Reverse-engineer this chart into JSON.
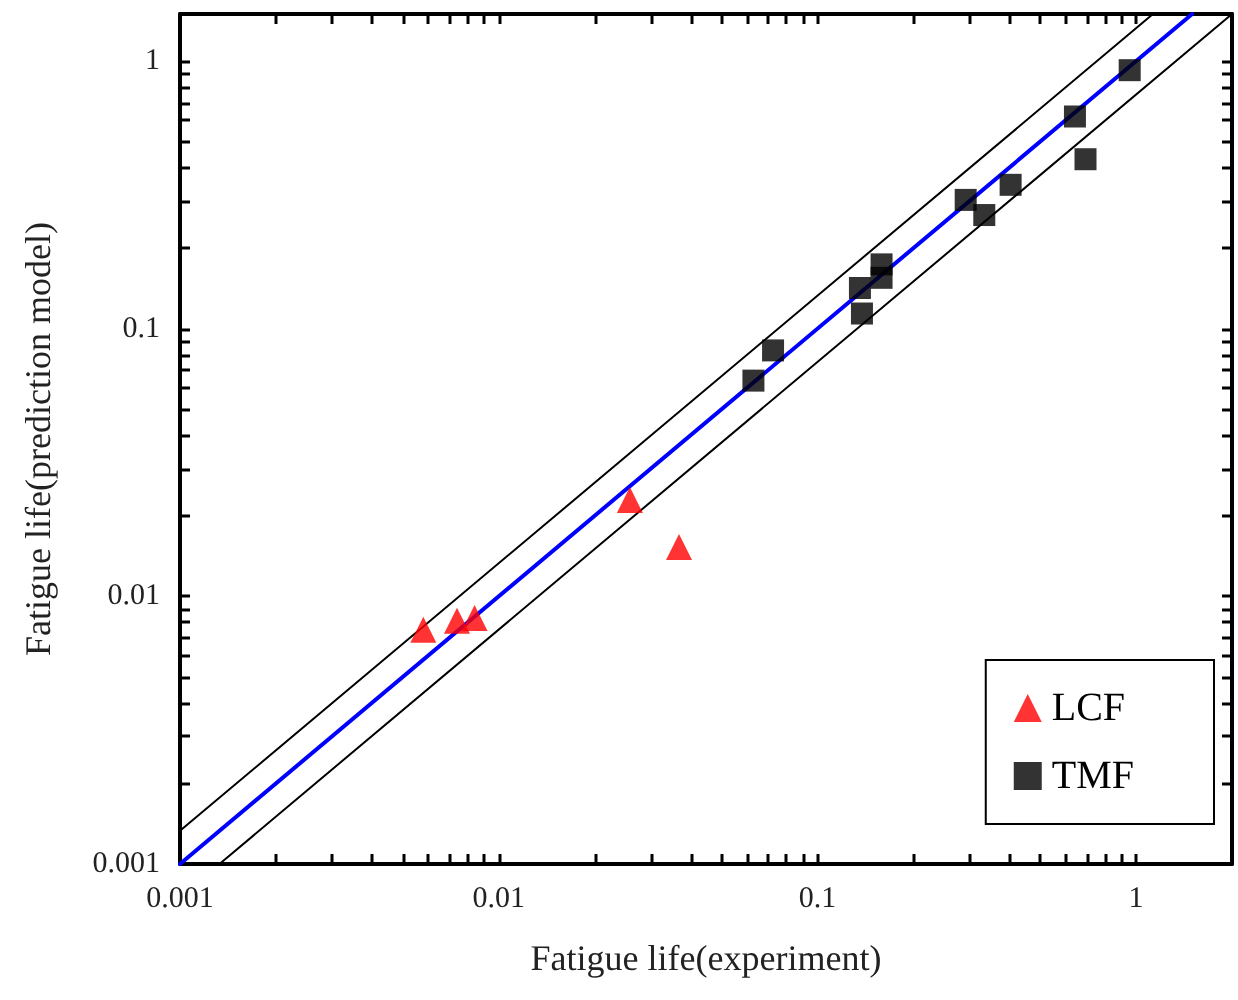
{
  "chart_data": {
    "type": "scatter",
    "xlabel": "Fatigue life(experiment)",
    "ylabel": "Fatigue life(prediction model)",
    "log": "xy",
    "grid": false,
    "legend": "bottom right",
    "xlim": [
      0.001,
      2
    ],
    "ylim": [
      0.001,
      1.5
    ],
    "xticks": [
      0.001,
      {
        "value": 0.002,
        "label": null
      },
      {
        "value": 0.003,
        "label": null
      },
      {
        "value": 0.004,
        "label": null
      },
      {
        "value": 0.005,
        "label": null
      },
      {
        "value": 0.006,
        "label": null
      },
      {
        "value": 0.007,
        "label": null
      },
      {
        "value": 0.008,
        "label": null
      },
      {
        "value": 0.009,
        "label": null
      },
      0.01,
      {
        "value": 0.02,
        "label": null
      },
      {
        "value": 0.03,
        "label": null
      },
      {
        "value": 0.04,
        "label": null
      },
      {
        "value": 0.05,
        "label": null
      },
      {
        "value": 0.06,
        "label": null
      },
      {
        "value": 0.07,
        "label": null
      },
      {
        "value": 0.08,
        "label": null
      },
      {
        "value": 0.09,
        "label": null
      },
      0.1,
      {
        "value": 0.2,
        "label": null
      },
      {
        "value": 0.3,
        "label": null
      },
      {
        "value": 0.4,
        "label": null
      },
      {
        "value": 0.5,
        "label": null
      },
      {
        "value": 0.6,
        "label": null
      },
      {
        "value": 0.7,
        "label": null
      },
      {
        "value": 0.8,
        "label": null
      },
      {
        "value": 0.9,
        "label": null
      },
      1,
      {
        "value": 2,
        "label": null
      }
    ],
    "yticks": [
      0.001,
      {
        "value": 0.002,
        "label": null
      },
      {
        "value": 0.003,
        "label": null
      },
      {
        "value": 0.004,
        "label": null
      },
      {
        "value": 0.005,
        "label": null
      },
      {
        "value": 0.006,
        "label": null
      },
      {
        "value": 0.007,
        "label": null
      },
      {
        "value": 0.008,
        "label": null
      },
      {
        "value": 0.009,
        "label": null
      },
      0.01,
      {
        "value": 0.02,
        "label": null
      },
      {
        "value": 0.03,
        "label": null
      },
      {
        "value": 0.04,
        "label": null
      },
      {
        "value": 0.05,
        "label": null
      },
      {
        "value": 0.06,
        "label": null
      },
      {
        "value": 0.07,
        "label": null
      },
      {
        "value": 0.08,
        "label": null
      },
      {
        "value": 0.09,
        "label": null
      },
      0.1,
      {
        "value": 0.2,
        "label": null
      },
      {
        "value": 0.3,
        "label": null
      },
      {
        "value": 0.4,
        "label": null
      },
      {
        "value": 0.5,
        "label": null
      },
      {
        "value": 0.6,
        "label": null
      },
      {
        "value": 0.7,
        "label": null
      },
      {
        "value": 0.8,
        "label": null
      },
      {
        "value": 0.9,
        "label": null
      },
      1
    ],
    "series": [
      {
        "name": "LCF",
        "type": "scatter",
        "marker": "triangle",
        "color": "#ff0000",
        "x": [
          0.0058,
          0.0074,
          0.0084,
          0.0258,
          0.0368
        ],
        "values": [
          0.0075,
          0.0081,
          0.0083,
          0.0229,
          0.0153
        ]
      },
      {
        "name": "TMF",
        "type": "scatter",
        "marker": "square",
        "color": "#000000",
        "x": [
          0.063,
          0.0726,
          0.136,
          0.138,
          0.159,
          0.159,
          0.292,
          0.334,
          0.404,
          0.643,
          0.694,
          0.955
        ],
        "values": [
          0.064,
          0.083,
          0.142,
          0.114,
          0.174,
          0.155,
          0.303,
          0.266,
          0.345,
          0.621,
          0.43,
          0.925
        ]
      },
      {
        "type": "line",
        "marker": "none",
        "color": "#0000ff",
        "x": [
          0.001,
          1.5
        ],
        "values": [
          0.001,
          1.5
        ]
      },
      {
        "type": "line",
        "marker": "none",
        "color": "#000000",
        "x": [
          0.001,
          1.13
        ],
        "values": [
          0.00133,
          1.5
        ]
      },
      {
        "type": "line",
        "marker": "none",
        "color": "#000000",
        "x": [
          0.00133,
          2
        ],
        "values": [
          0.001,
          1.5
        ]
      }
    ]
  }
}
